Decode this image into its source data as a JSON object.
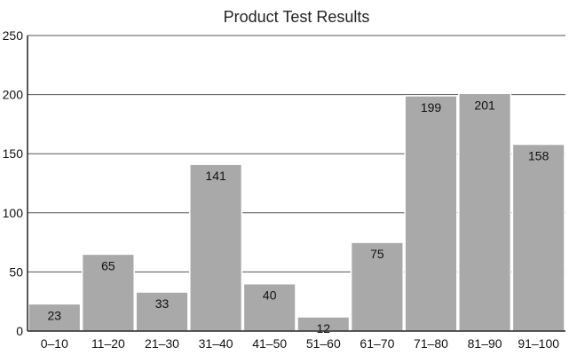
{
  "chart_data": {
    "type": "bar",
    "title": "Product Test Results",
    "xlabel": "",
    "ylabel": "",
    "categories": [
      "0–10",
      "11–20",
      "21–30",
      "31–40",
      "41–50",
      "51–60",
      "61–70",
      "71–80",
      "81–90",
      "91–100"
    ],
    "values": [
      23,
      65,
      33,
      141,
      40,
      12,
      75,
      199,
      201,
      158
    ],
    "ylim": [
      0,
      250
    ],
    "yticks": [
      0,
      50,
      100,
      150,
      200,
      250
    ],
    "grid": true,
    "legend": "none",
    "bar_color": "#a9a9a9"
  }
}
